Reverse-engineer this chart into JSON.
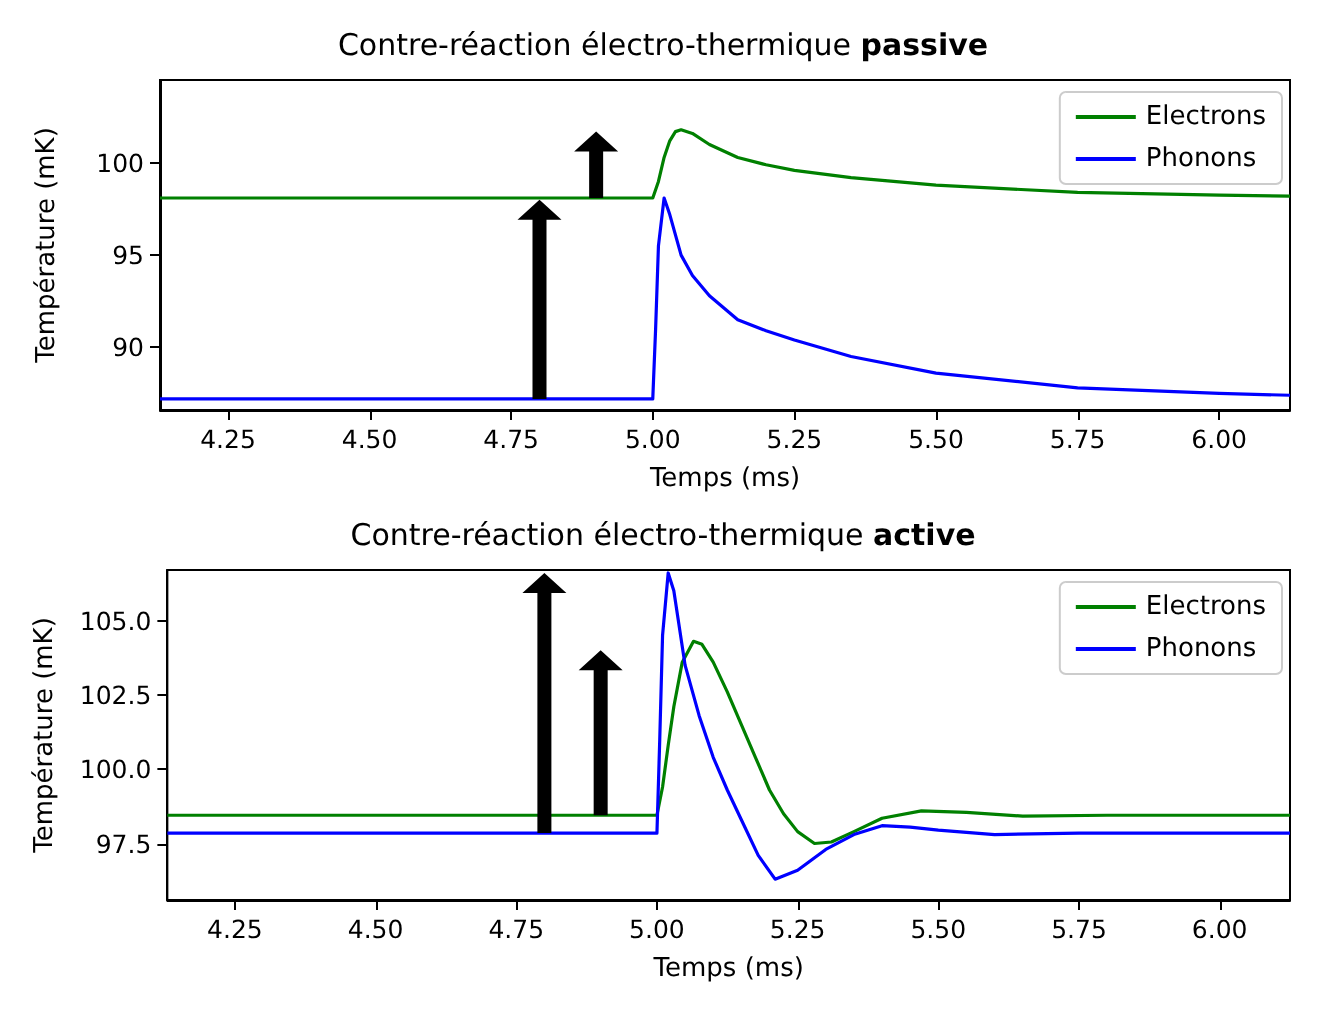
{
  "chart_data": [
    {
      "type": "line",
      "title": "Contre-réaction électro-thermique passive",
      "xlabel": "Temps (ms)",
      "ylabel": "Température (mK)",
      "xlim": [
        4.13,
        6.125
      ],
      "xticks": [
        {
          "value": 4.25,
          "label": "4.25"
        },
        {
          "value": 4.5,
          "label": "4.50"
        },
        {
          "value": 4.75,
          "label": "4.75"
        },
        {
          "value": 5,
          "label": "5.00"
        },
        {
          "value": 5.25,
          "label": "5.25"
        },
        {
          "value": 5.5,
          "label": "5.50"
        },
        {
          "value": 5.75,
          "label": "5.75"
        },
        {
          "value": 6,
          "label": "6.00"
        }
      ],
      "ylim": [
        86.6,
        104.5
      ],
      "yticks": [
        90,
        95,
        100
      ],
      "grid": false,
      "legend": "top right",
      "marker": "none",
      "line_style": "solid",
      "series": [
        {
          "name": "Electrons",
          "color": "#008000",
          "x": [
            4.13,
            5.0,
            5.01,
            5.02,
            5.03,
            5.04,
            5.05,
            5.07,
            5.1,
            5.15,
            5.2,
            5.25,
            5.35,
            5.5,
            5.75,
            6.0,
            6.125
          ],
          "values": [
            98.1,
            98.1,
            99.0,
            100.3,
            101.2,
            101.7,
            101.8,
            101.6,
            101.0,
            100.3,
            99.9,
            99.6,
            99.2,
            98.8,
            98.4,
            98.25,
            98.2
          ]
        },
        {
          "name": "Phonons",
          "color": "#0000ff",
          "x": [
            4.13,
            5.0,
            5.005,
            5.01,
            5.02,
            5.03,
            5.05,
            5.07,
            5.1,
            5.15,
            5.2,
            5.25,
            5.35,
            5.5,
            5.75,
            6.0,
            6.125
          ],
          "values": [
            87.2,
            87.2,
            91.0,
            95.5,
            98.1,
            97.2,
            95.0,
            93.9,
            92.8,
            91.5,
            90.9,
            90.4,
            89.5,
            88.6,
            87.8,
            87.5,
            87.4
          ]
        }
      ]
    },
    {
      "type": "line",
      "title": "Contre-réaction électro-thermique active",
      "xlabel": "Temps (ms)",
      "ylabel": "Température (mK)",
      "xlim": [
        4.13,
        6.125
      ],
      "xticks": [
        {
          "value": 4.25,
          "label": "4.25"
        },
        {
          "value": 4.5,
          "label": "4.50"
        },
        {
          "value": 4.75,
          "label": "4.75"
        },
        {
          "value": 5,
          "label": "5.00"
        },
        {
          "value": 5.25,
          "label": "5.25"
        },
        {
          "value": 5.5,
          "label": "5.50"
        },
        {
          "value": 5.75,
          "label": "5.75"
        },
        {
          "value": 6,
          "label": "6.00"
        }
      ],
      "ylim": [
        95.6,
        106.7
      ],
      "yticks": [
        {
          "value": 97.5,
          "label": "97.5"
        },
        {
          "value": 100,
          "label": "100.0"
        },
        {
          "value": 102.5,
          "label": "102.5"
        },
        {
          "value": 105,
          "label": "105.0"
        }
      ],
      "grid": false,
      "legend": "top right",
      "marker": "none",
      "line_style": "solid",
      "series": [
        {
          "name": "Electrons",
          "color": "#008000",
          "x": [
            4.13,
            5.0,
            5.01,
            5.02,
            5.03,
            5.045,
            5.065,
            5.08,
            5.1,
            5.125,
            5.15,
            5.175,
            5.2,
            5.225,
            5.25,
            5.28,
            5.31,
            5.35,
            5.4,
            5.47,
            5.55,
            5.65,
            5.8,
            6.125
          ],
          "values": [
            98.45,
            98.45,
            99.4,
            100.8,
            102.1,
            103.6,
            104.3,
            104.2,
            103.6,
            102.6,
            101.5,
            100.4,
            99.3,
            98.5,
            97.9,
            97.5,
            97.55,
            97.9,
            98.35,
            98.6,
            98.55,
            98.42,
            98.45,
            98.45
          ]
        },
        {
          "name": "Phonons",
          "color": "#0000ff",
          "x": [
            4.13,
            5.0,
            5.005,
            5.01,
            5.02,
            5.03,
            5.05,
            5.075,
            5.1,
            5.125,
            5.15,
            5.18,
            5.21,
            5.25,
            5.3,
            5.35,
            5.4,
            5.45,
            5.5,
            5.6,
            5.75,
            6.125
          ],
          "values": [
            97.85,
            97.85,
            101.0,
            104.5,
            106.6,
            106.0,
            103.5,
            101.8,
            100.4,
            99.3,
            98.3,
            97.1,
            96.3,
            96.6,
            97.3,
            97.8,
            98.1,
            98.05,
            97.95,
            97.8,
            97.85,
            97.85
          ]
        }
      ]
    }
  ]
}
